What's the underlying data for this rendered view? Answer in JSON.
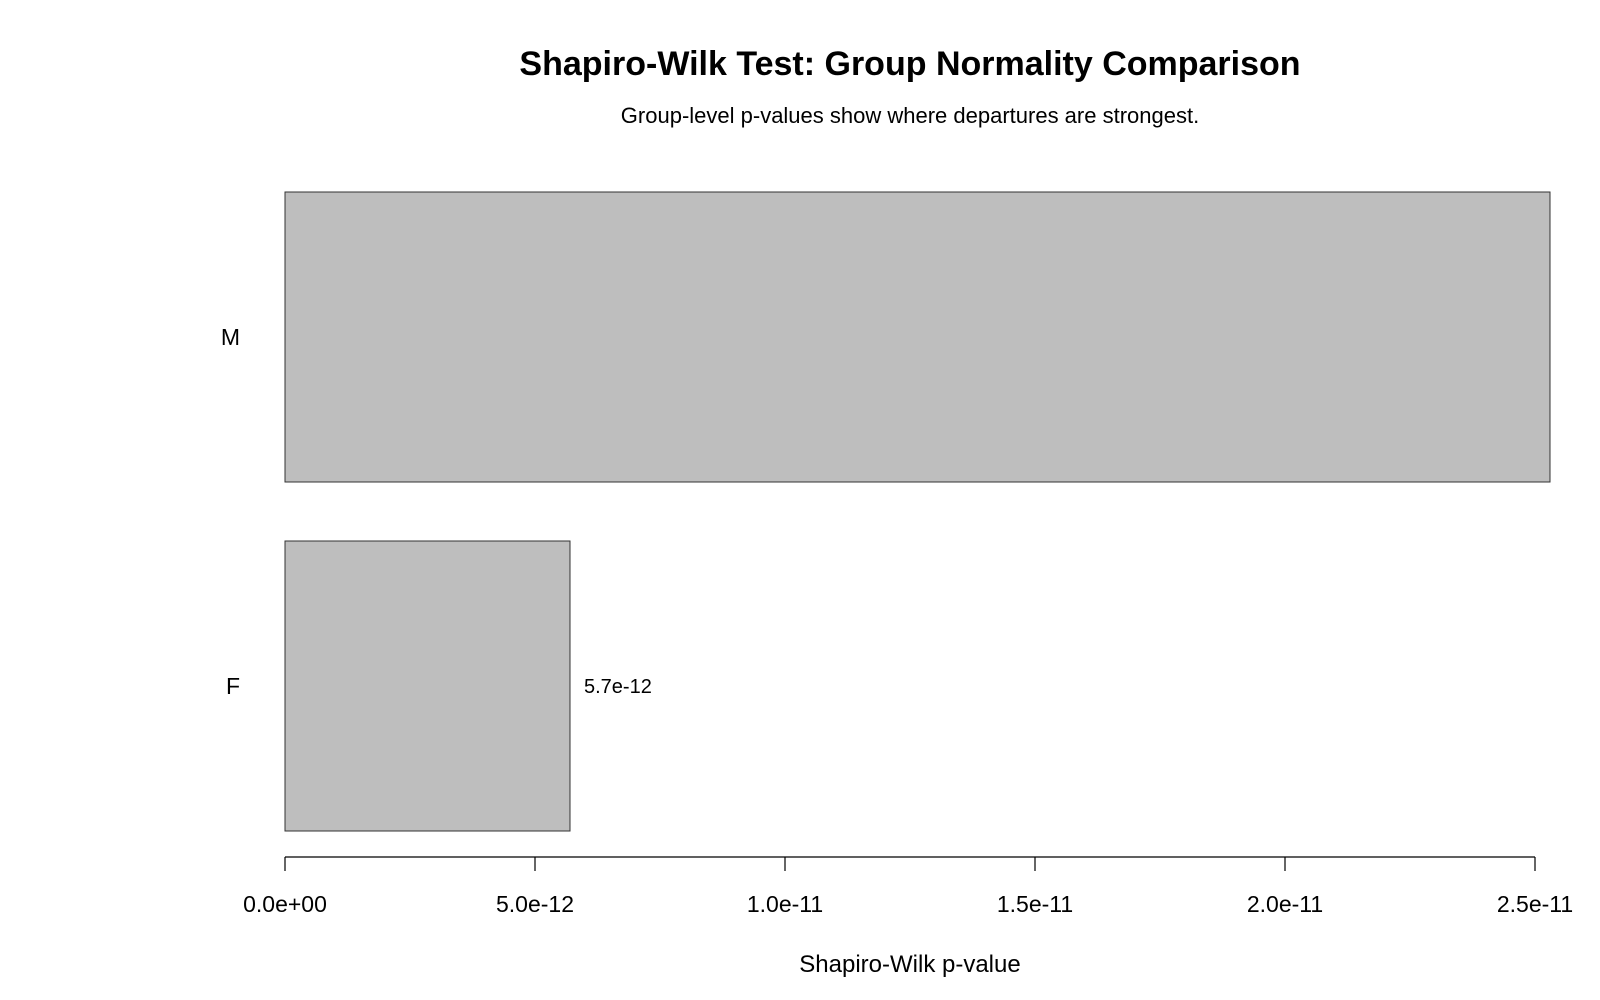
{
  "chart_data": {
    "type": "bar",
    "orientation": "horizontal",
    "title": "Shapiro-Wilk Test: Group Normality Comparison",
    "subtitle": "Group-level p-values show where departures are strongest.",
    "xlabel": "Shapiro-Wilk p-value",
    "ylabel": "",
    "categories": [
      "M",
      "F"
    ],
    "values": [
      2.53e-11,
      5.7e-12
    ],
    "data_labels": [
      "",
      "5.7e-12"
    ],
    "xlim": [
      0,
      2.5e-11
    ],
    "xticks": [
      0,
      5e-12,
      1e-11,
      1.5e-11,
      2e-11,
      2.5e-11
    ],
    "xtick_labels": [
      "0.0e+00",
      "5.0e-12",
      "1.0e-11",
      "1.5e-11",
      "2.0e-11",
      "2.5e-11"
    ],
    "grid": false,
    "legend": "none",
    "bar_color": "#bebebe",
    "bar_border_color": "#333333"
  }
}
